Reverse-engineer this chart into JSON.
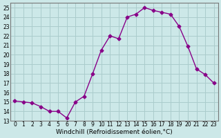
{
  "x": [
    0,
    1,
    2,
    3,
    4,
    5,
    6,
    7,
    8,
    9,
    10,
    11,
    12,
    13,
    14,
    15,
    16,
    17,
    18,
    19,
    20,
    21,
    22,
    23
  ],
  "y": [
    15.1,
    15.0,
    14.9,
    14.5,
    14.0,
    14.0,
    13.3,
    15.0,
    15.6,
    18.0,
    20.5,
    22.0,
    21.7,
    24.0,
    24.3,
    25.0,
    24.7,
    24.5,
    24.3,
    23.0,
    20.9,
    18.5,
    17.9,
    17.0
  ],
  "line_color": "#880088",
  "marker": "D",
  "marker_size": 2.5,
  "bg_color": "#cce8e8",
  "grid_color": "#aacccc",
  "xlabel": "Windchill (Refroidissement éolien,°C)",
  "xlabel_fontsize": 6.5,
  "ylim": [
    13,
    25.5
  ],
  "yticks": [
    13,
    14,
    15,
    16,
    17,
    18,
    19,
    20,
    21,
    22,
    23,
    24,
    25
  ],
  "xticks": [
    0,
    1,
    2,
    3,
    4,
    5,
    6,
    7,
    8,
    9,
    10,
    11,
    12,
    13,
    14,
    15,
    16,
    17,
    18,
    19,
    20,
    21,
    22,
    23
  ],
  "tick_fontsize": 5.5,
  "line_width": 1.0
}
